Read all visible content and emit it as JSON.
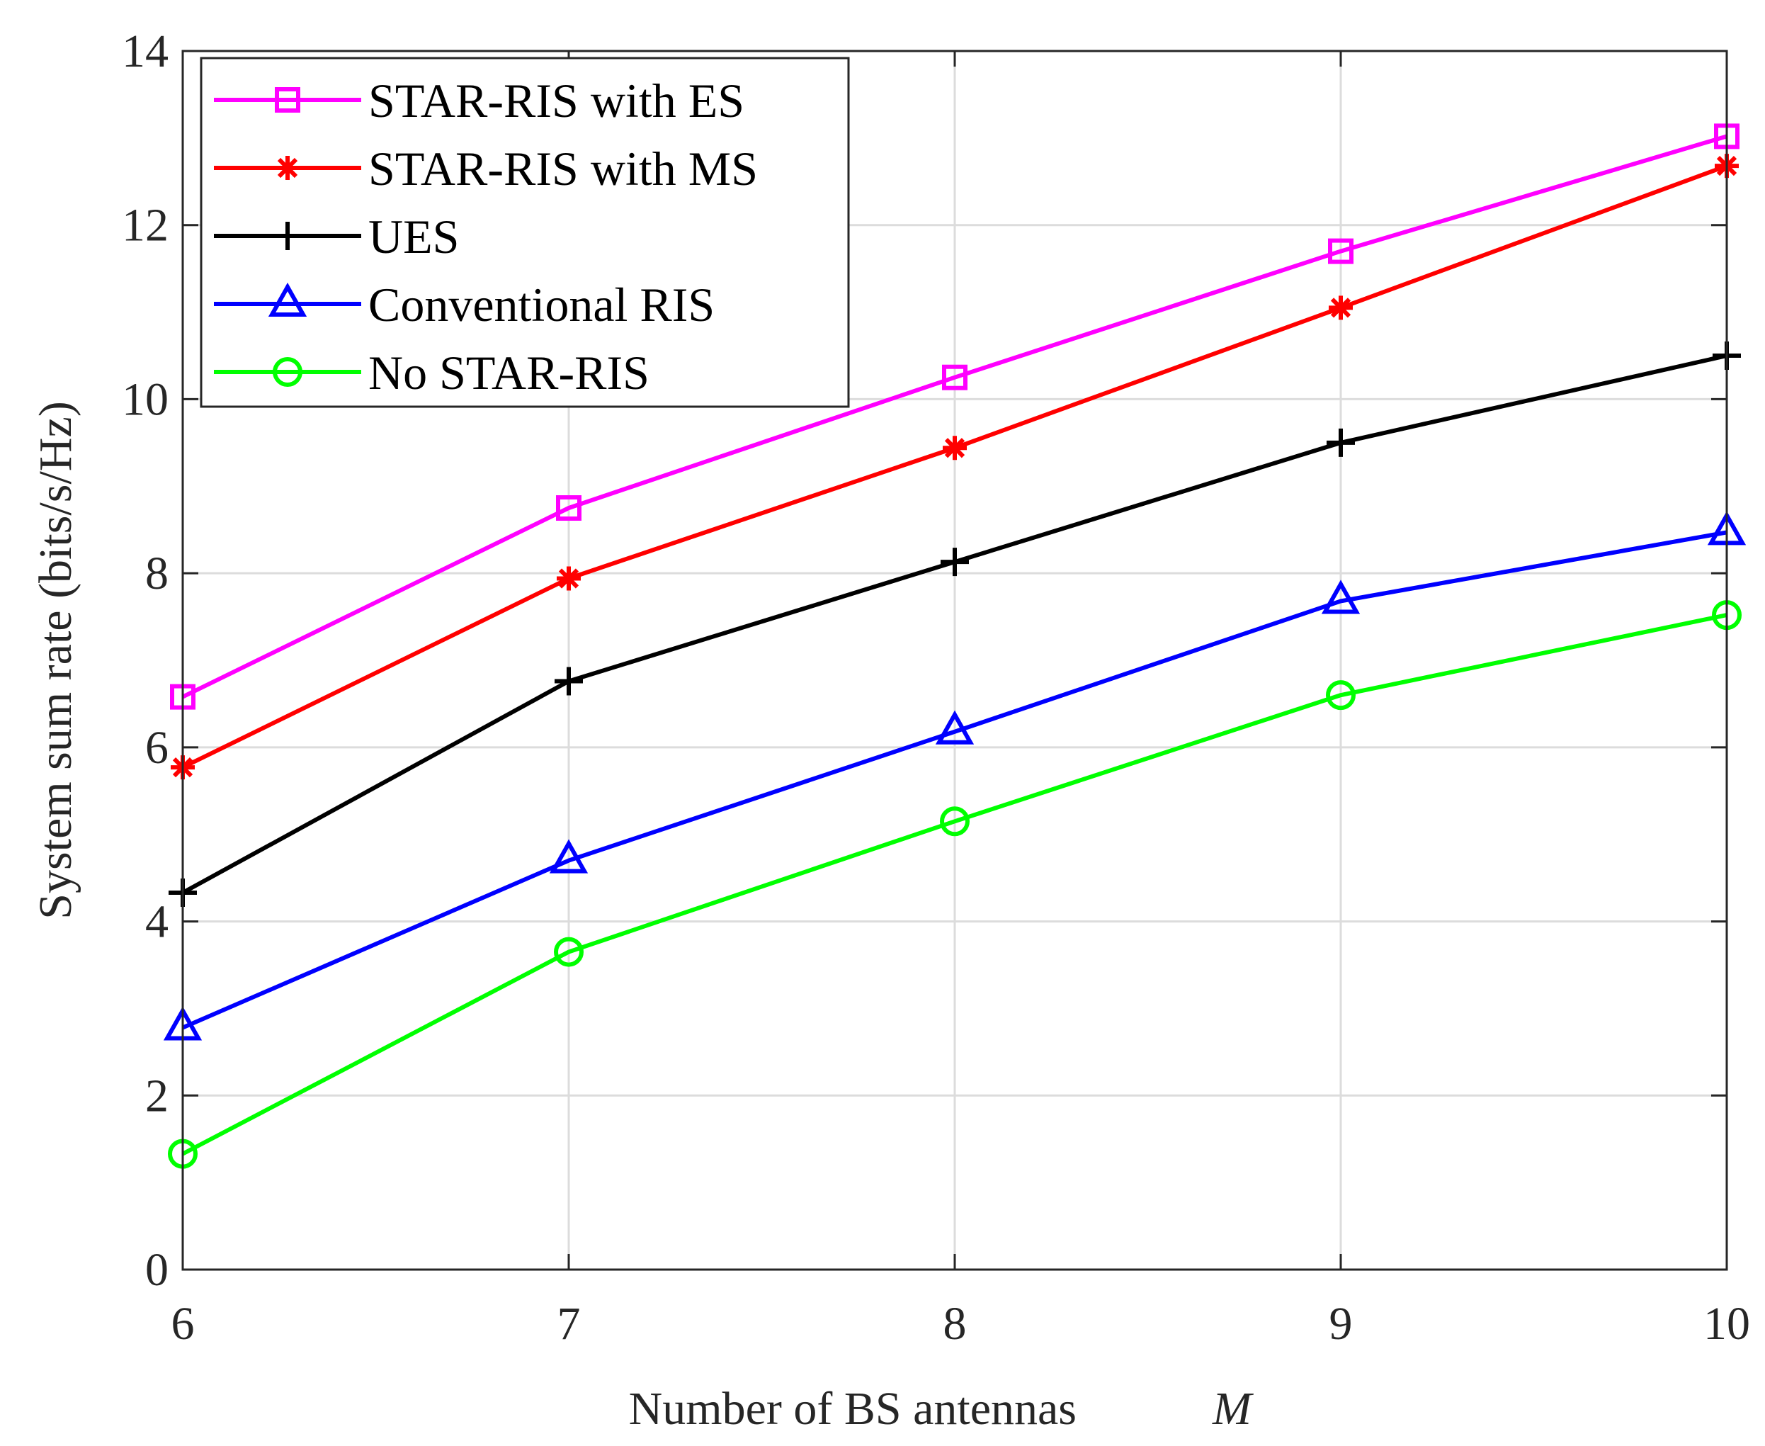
{
  "chart_data": {
    "type": "line",
    "title": "",
    "xlabel": "Number of BS antennas",
    "xlabel_var": "M",
    "ylabel": "System sum rate (bits/s/Hz)",
    "x": [
      6,
      7,
      8,
      9,
      10
    ],
    "xlim": [
      6,
      10
    ],
    "ylim": [
      0,
      14
    ],
    "xticks": [
      "6",
      "7",
      "8",
      "9",
      "10"
    ],
    "yticks": [
      "0",
      "2",
      "4",
      "6",
      "8",
      "10",
      "12",
      "14"
    ],
    "grid": true,
    "legend_position": "top-left",
    "series": [
      {
        "name": "STAR-RIS with ES",
        "color": "#ff00ff",
        "marker": "square",
        "values": [
          6.58,
          8.75,
          10.25,
          11.7,
          13.02
        ]
      },
      {
        "name": "STAR-RIS with MS",
        "color": "#ff0000",
        "marker": "asterisk",
        "values": [
          5.77,
          7.94,
          9.44,
          11.05,
          12.68
        ]
      },
      {
        "name": "UES",
        "color": "#000000",
        "marker": "plus",
        "values": [
          4.33,
          6.76,
          8.13,
          9.5,
          10.5
        ]
      },
      {
        "name": "Conventional RIS",
        "color": "#0000ff",
        "marker": "triangle",
        "values": [
          2.78,
          4.7,
          6.18,
          7.68,
          8.47
        ]
      },
      {
        "name": "No STAR-RIS",
        "color": "#00ff00",
        "marker": "circle",
        "values": [
          1.33,
          3.65,
          5.15,
          6.6,
          7.52
        ]
      }
    ]
  }
}
